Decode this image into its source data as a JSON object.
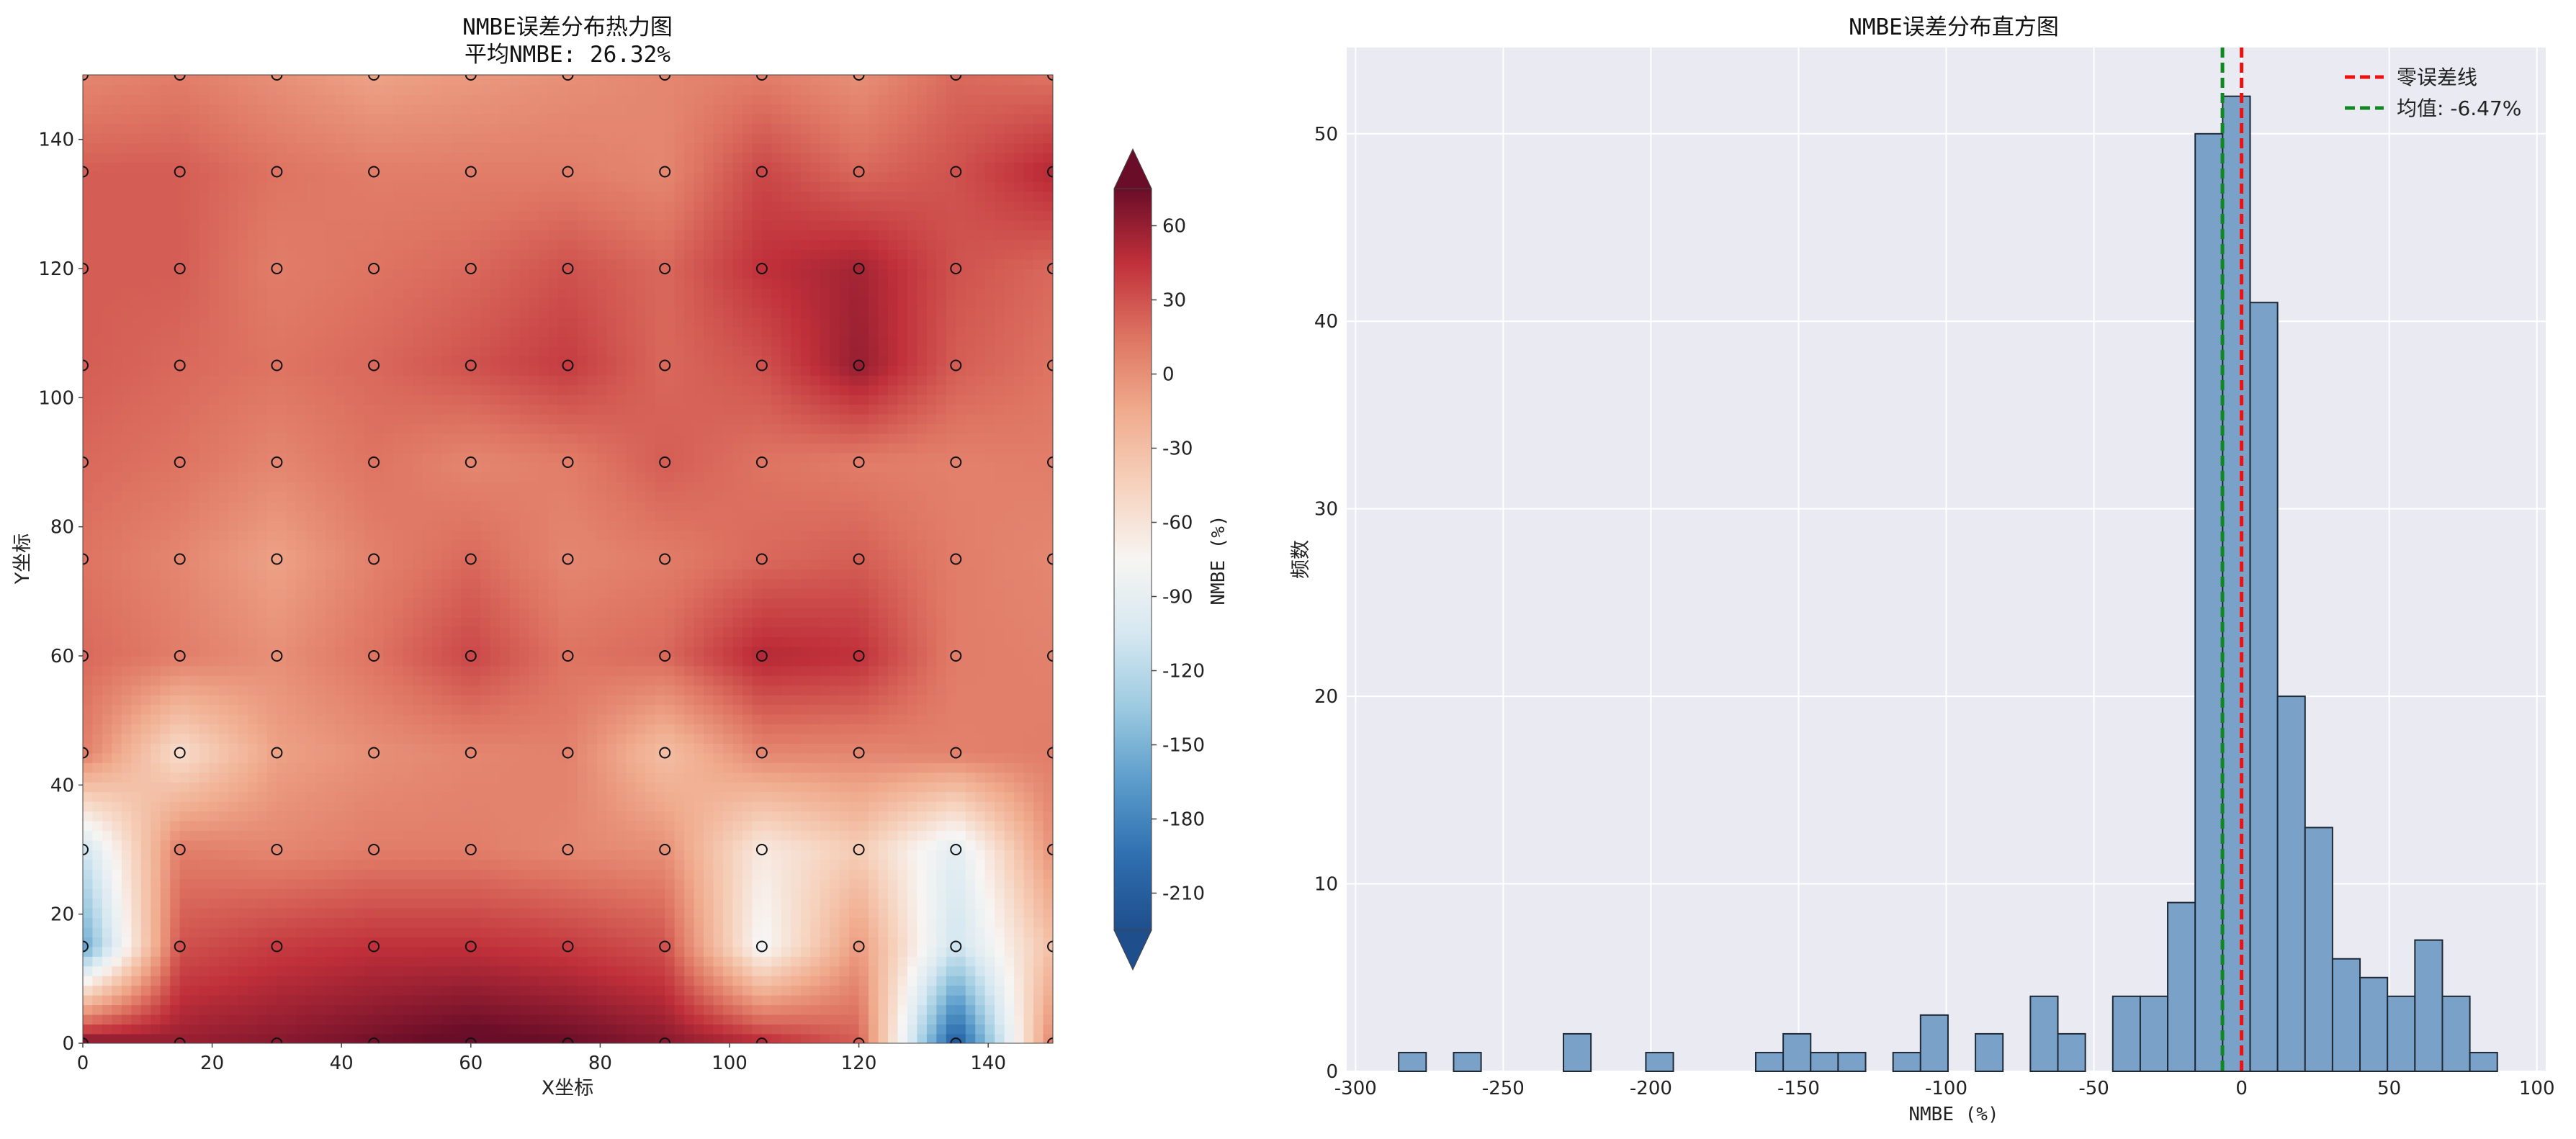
{
  "chart_data": [
    {
      "type": "heatmap",
      "title": "NMBE误差分布热力图",
      "subtitle": "平均NMBE: 26.32%",
      "xlabel": "X坐标",
      "ylabel": "Y坐标",
      "xlim": [
        0,
        150
      ],
      "ylim": [
        0,
        150
      ],
      "x_ticks": [
        0,
        20,
        40,
        60,
        80,
        100,
        120,
        140
      ],
      "y_ticks": [
        0,
        20,
        40,
        60,
        80,
        100,
        120,
        140
      ],
      "x_tick_labels": [
        "0",
        "20",
        "40",
        "60",
        "80",
        "100",
        "120",
        "140"
      ],
      "y_tick_labels": [
        "0",
        "20",
        "40",
        "60",
        "80",
        "100",
        "120",
        "140"
      ],
      "grid_x": [
        0,
        15,
        30,
        45,
        60,
        75,
        90,
        105,
        120,
        135,
        150
      ],
      "grid_y": [
        0,
        15,
        30,
        45,
        60,
        75,
        90,
        105,
        120,
        135,
        150
      ],
      "z": [
        [
          70,
          60,
          65,
          72,
          80,
          75,
          65,
          50,
          25,
          -215,
          10
        ],
        [
          -160,
          30,
          40,
          45,
          45,
          40,
          30,
          -80,
          -5,
          -110,
          -30
        ],
        [
          -110,
          10,
          5,
          10,
          10,
          5,
          0,
          -65,
          -40,
          -95,
          0
        ],
        [
          10,
          -55,
          -10,
          0,
          5,
          8,
          -30,
          5,
          5,
          8,
          10
        ],
        [
          20,
          10,
          0,
          15,
          35,
          15,
          20,
          50,
          45,
          10,
          8
        ],
        [
          15,
          5,
          -10,
          8,
          20,
          5,
          10,
          20,
          25,
          10,
          5
        ],
        [
          20,
          15,
          5,
          15,
          5,
          10,
          25,
          15,
          10,
          8,
          10
        ],
        [
          25,
          20,
          15,
          20,
          30,
          40,
          20,
          30,
          60,
          25,
          15
        ],
        [
          25,
          25,
          10,
          15,
          20,
          30,
          20,
          45,
          55,
          30,
          20
        ],
        [
          25,
          25,
          15,
          10,
          10,
          10,
          5,
          35,
          20,
          30,
          50
        ],
        [
          5,
          10,
          0,
          -10,
          -5,
          0,
          5,
          10,
          0,
          20,
          15
        ]
      ],
      "colorbar": {
        "label": "NMBE (%)",
        "ticks": [
          60,
          30,
          0,
          -30,
          -60,
          -90,
          -120,
          -150,
          -180,
          -210
        ],
        "tick_labels": [
          "60",
          "30",
          "0",
          "-30",
          "-60",
          "-90",
          "-120",
          "-150",
          "-180",
          "-210"
        ],
        "range": [
          -225,
          75
        ],
        "colormap": "RdBu_r"
      }
    },
    {
      "type": "bar",
      "title": "NMBE误差分布直方图",
      "xlabel": "NMBE (%)",
      "ylabel": "频数",
      "xlim": [
        -303,
        103
      ],
      "ylim": [
        0,
        54.6
      ],
      "x_ticks": [
        -300,
        -250,
        -200,
        -150,
        -100,
        -50,
        0,
        50,
        100
      ],
      "y_ticks": [
        0,
        10,
        20,
        30,
        40,
        50
      ],
      "x_tick_labels": [
        "-300",
        "-250",
        "-200",
        "-150",
        "-100",
        "-50",
        "0",
        "50",
        "100"
      ],
      "y_tick_labels": [
        "0",
        "10",
        "20",
        "30",
        "40",
        "50"
      ],
      "bin_width": 9.3,
      "bins_left": [
        -285.4,
        -266.8,
        -229.6,
        -201.7,
        -164.5,
        -155.2,
        -145.9,
        -136.6,
        -118.0,
        -108.7,
        -90.1,
        -71.5,
        -62.2,
        -43.6,
        -34.3,
        -25.0,
        -15.7,
        -6.4,
        2.9,
        12.2,
        21.5,
        30.8,
        40.1,
        49.4,
        58.7,
        68.0,
        77.3
      ],
      "counts": [
        1,
        1,
        2,
        1,
        1,
        2,
        1,
        1,
        1,
        3,
        2,
        4,
        2,
        4,
        4,
        9,
        50,
        52,
        41,
        20,
        13,
        6,
        5,
        4,
        7,
        4,
        1
      ],
      "bar_color": "#7aa2c8",
      "edge_color": "#1f2a36",
      "grid": true,
      "legend_position": "top-right",
      "legend": [
        {
          "label": "零误差线",
          "color": "#ee1111",
          "x": 0
        },
        {
          "label": "均值: -6.47%",
          "color": "#118822",
          "x": -6.47
        }
      ]
    }
  ]
}
